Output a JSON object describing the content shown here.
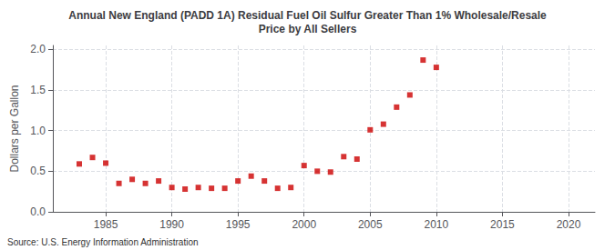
{
  "chart_data": {
    "type": "scatter",
    "title": "Annual New England (PADD 1A) Residual Fuel Oil Sulfur Greater Than 1% Wholesale/Resale\nPrice by All Sellers",
    "ylabel": "Dollars per Gallon",
    "annotation": "Source: U.S. Energy Information Administration",
    "x": [
      1983,
      1984,
      1985,
      1986,
      1987,
      1988,
      1989,
      1990,
      1991,
      1992,
      1993,
      1994,
      1995,
      1996,
      1997,
      1998,
      1999,
      2000,
      2001,
      2002,
      2003,
      2004,
      2005,
      2006,
      2007,
      2008,
      2009,
      2010
    ],
    "values": [
      0.59,
      0.67,
      0.6,
      0.35,
      0.4,
      0.35,
      0.38,
      0.3,
      0.28,
      0.3,
      0.29,
      0.29,
      0.38,
      0.44,
      0.38,
      0.29,
      0.3,
      0.57,
      0.5,
      0.49,
      0.68,
      0.65,
      1.01,
      1.08,
      1.29,
      1.44,
      1.87,
      1.78
    ],
    "color": "#cc0000",
    "marker": "square",
    "xlim": [
      1981,
      2022
    ],
    "ylim": [
      0.0,
      2.05
    ],
    "xticks": [
      1985,
      1990,
      1995,
      2000,
      2005,
      2010,
      2015,
      2020
    ],
    "yticks": [
      {
        "value": 0,
        "label": "0.0"
      },
      0.5,
      {
        "value": 1,
        "label": "1.0"
      },
      1.5,
      {
        "value": 2,
        "label": "2.0"
      }
    ],
    "grid": true
  }
}
